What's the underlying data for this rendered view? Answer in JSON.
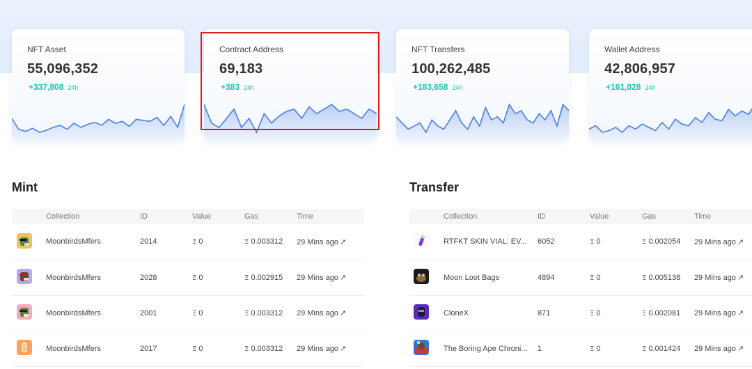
{
  "stats": [
    {
      "label": "NFT Asset",
      "value": "55,096,352",
      "delta": "+337,808",
      "period": "24h",
      "spark": [
        22,
        11,
        9,
        12,
        8,
        10,
        13,
        15,
        11,
        17,
        13,
        16,
        18,
        15,
        21,
        17,
        19,
        14,
        21,
        20,
        19,
        23,
        15,
        24,
        13,
        36
      ]
    },
    {
      "label": "Contract Address",
      "value": "69,183",
      "delta": "+383",
      "period": "24h",
      "spark": [
        30,
        22,
        20,
        24,
        28,
        20,
        24,
        18,
        26,
        22,
        25,
        27,
        28,
        24,
        29,
        26,
        28,
        30,
        27,
        28,
        26,
        24,
        28,
        26
      ]
    },
    {
      "label": "NFT Transfers",
      "value": "100,262,485",
      "delta": "+183,658",
      "period": "24h",
      "spark": [
        20,
        18,
        16,
        17,
        18,
        15,
        19,
        17,
        16,
        19,
        22,
        18,
        16,
        20,
        17,
        23,
        19,
        20,
        18,
        24,
        21,
        22,
        19,
        18,
        21,
        19,
        22,
        17,
        24,
        22
      ]
    },
    {
      "label": "Wallet Address",
      "value": "42,806,957",
      "delta": "+161,028",
      "period": "24h",
      "spark": [
        14,
        16,
        12,
        13,
        15,
        12,
        16,
        14,
        17,
        15,
        13,
        18,
        14,
        20,
        17,
        16,
        21,
        18,
        24,
        20,
        19,
        26,
        22,
        25,
        23,
        29,
        20
      ]
    }
  ],
  "accent_color": "#21c7a8",
  "line_color": "#4a7fe0",
  "mint": {
    "title": "Mint",
    "columns": [
      "Collection",
      "ID",
      "Value",
      "Gas",
      "Time"
    ],
    "rows": [
      {
        "collection": "MoonbirdsMfers",
        "id": "2014",
        "value": "0",
        "gas": "0.003312",
        "time": "29 Mins ago",
        "icon": "moonbird-green-icon"
      },
      {
        "collection": "MoonbirdsMfers",
        "id": "2028",
        "value": "0",
        "gas": "0.002915",
        "time": "29 Mins ago",
        "icon": "moonbird-purple-icon"
      },
      {
        "collection": "MoonbirdsMfers",
        "id": "2001",
        "value": "0",
        "gas": "0.003312",
        "time": "29 Mins ago",
        "icon": "moonbird-pink-icon"
      },
      {
        "collection": "MoonbirdsMfers",
        "id": "2017",
        "value": "0",
        "gas": "0.003312",
        "time": "29 Mins ago",
        "icon": "moonbird-orange-icon"
      }
    ]
  },
  "transfer": {
    "title": "Transfer",
    "columns": [
      "Collection",
      "ID",
      "Value",
      "Gas",
      "Time"
    ],
    "rows": [
      {
        "collection": "RTFKT SKIN VIAL: EV...",
        "id": "6052",
        "value": "0",
        "gas": "0.002054",
        "time": "29 Mins ago",
        "icon": "vial-icon"
      },
      {
        "collection": "Moon Loot Bags",
        "id": "4894",
        "value": "0",
        "gas": "0.005138",
        "time": "29 Mins ago",
        "icon": "loot-bag-icon"
      },
      {
        "collection": "CloneX",
        "id": "871",
        "value": "0",
        "gas": "0.002081",
        "time": "29 Mins ago",
        "icon": "clonex-icon"
      },
      {
        "collection": "The Boring Ape Chroni...",
        "id": "1",
        "value": "0",
        "gas": "0.001424",
        "time": "29 Mins ago",
        "icon": "boring-ape-icon"
      }
    ]
  }
}
